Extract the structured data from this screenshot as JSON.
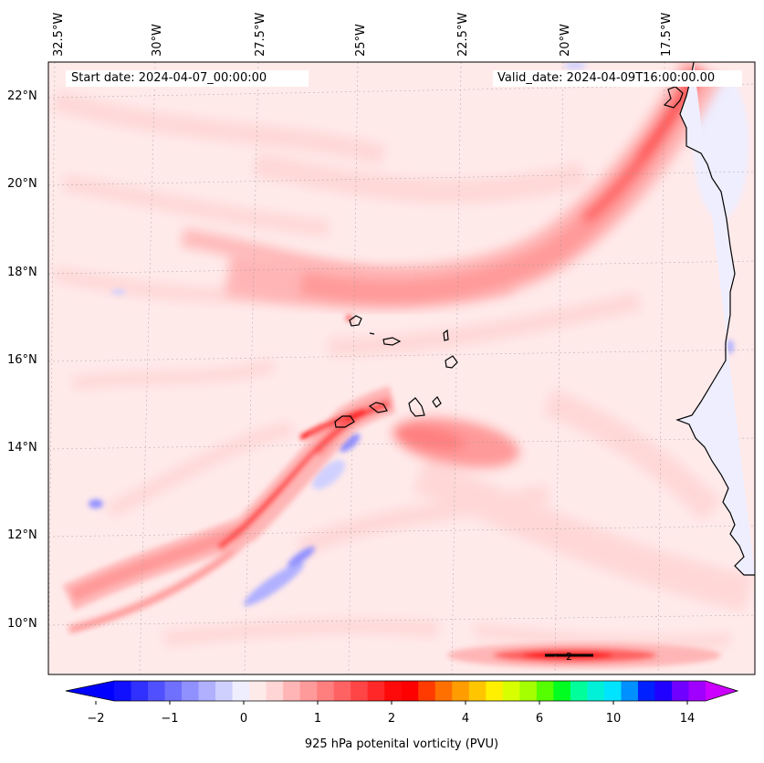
{
  "header": {
    "start_date": "Start date: 2024-04-07_00:00:00",
    "valid_date": "Valid_date: 2024-04-09T16:00:00.00"
  },
  "axes": {
    "lon_labels": [
      "32.5°W",
      "30°W",
      "27.5°W",
      "25°W",
      "22.5°W",
      "20°W",
      "17.5°W"
    ],
    "lat_labels": [
      "22°N",
      "20°N",
      "18°N",
      "16°N",
      "14°N",
      "12°N",
      "10°N"
    ]
  },
  "contour_label": "2",
  "colorbar": {
    "title": "925 hPa potenital vorticity (PVU)",
    "tick_labels": [
      "−2",
      "−1",
      "0",
      "1",
      "2",
      "4",
      "6",
      "10",
      "14"
    ],
    "colors": [
      "#1010ff",
      "#3030ff",
      "#5050ff",
      "#7070ff",
      "#9090ff",
      "#b0b0ff",
      "#d0d0ff",
      "#eeeeff",
      "#ffeaea",
      "#ffd5d5",
      "#ffb5b5",
      "#ff9a9a",
      "#ff7f7f",
      "#ff6262",
      "#ff4545",
      "#ff2727",
      "#ff0a0a",
      "#ff0000",
      "#ff3b00",
      "#ff7000",
      "#ff9c00",
      "#ffc600",
      "#fff000",
      "#d8ff00",
      "#a4ff00",
      "#55ff00",
      "#00ff20",
      "#00ff9a",
      "#00f0d8",
      "#00e4ff",
      "#0090ff",
      "#0020ff",
      "#2000ff",
      "#7000ff",
      "#a000ff"
    ],
    "under_color": "#0000ff",
    "over_color": "#cc00ff"
  }
}
